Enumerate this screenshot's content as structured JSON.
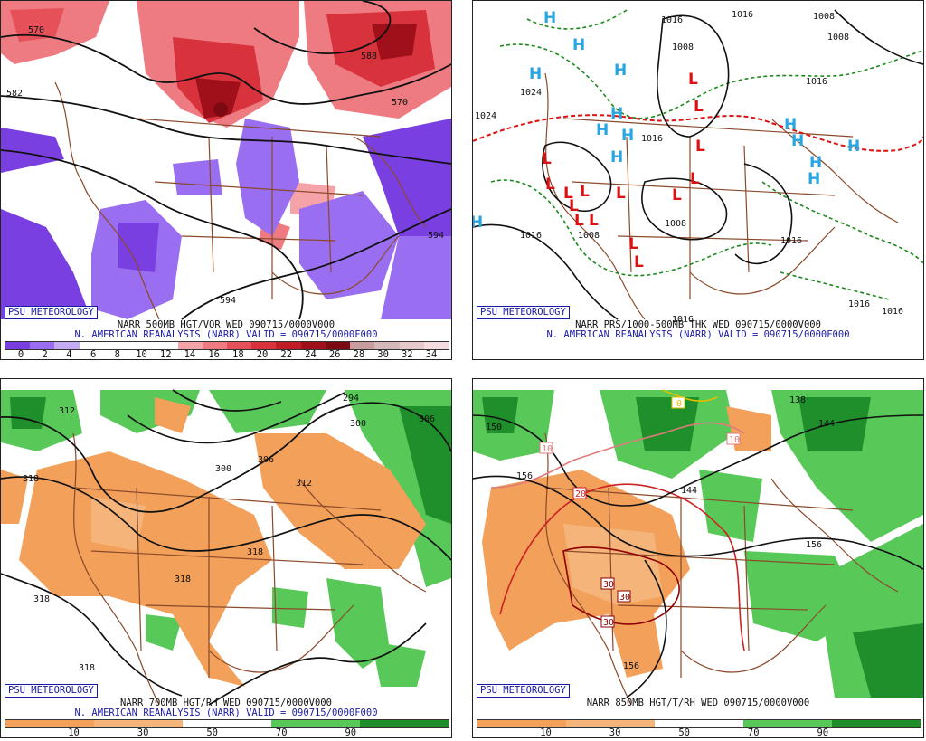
{
  "branding": {
    "psu_label": "PSU METEOROLOGY"
  },
  "panels": {
    "tl": {
      "title": "NARR 500MB HGT/VOR WED 090715/0000V000",
      "subtitle": "N. AMERICAN REANALYSIS (NARR) VALID = 090715/0000F000",
      "contour_labels": [
        "570",
        "582",
        "588",
        "570",
        "594",
        "594"
      ],
      "colorbar_ticks": [
        "0",
        "2",
        "4",
        "6",
        "8",
        "10",
        "12",
        "14",
        "16",
        "18",
        "20",
        "22",
        "24",
        "26",
        "28",
        "30",
        "32",
        "34"
      ]
    },
    "tr": {
      "title": "NARR PRS/1000-500MB THK WED 090715/0000V000",
      "subtitle": "N. AMERICAN REANALYSIS (NARR) VALID = 090715/0000F000",
      "contour_labels": [
        "1024",
        "1024",
        "1016",
        "1008",
        "1016",
        "1008",
        "1016",
        "1008",
        "1016",
        "1016",
        "1008",
        "1016",
        "1016",
        "1016",
        "1008",
        "1016"
      ],
      "high_label": "H",
      "low_label": "L"
    },
    "bl": {
      "title": "NARR 700MB HGT/RH WED 090715/0000V000",
      "subtitle": "N. AMERICAN REANALYSIS (NARR) VALID = 090715/0000F000",
      "contour_labels": [
        "312",
        "318",
        "300",
        "306",
        "312",
        "294",
        "306",
        "300",
        "318",
        "318",
        "318",
        "318"
      ],
      "colorbar_ticks": [
        "10",
        "30",
        "50",
        "70",
        "90"
      ]
    },
    "br": {
      "title": "NARR 850MB HGT/T/RH WED 090715/0000V000",
      "contour_labels": [
        "150",
        "156",
        "144",
        "138",
        "144",
        "156",
        "156"
      ],
      "temp_labels": [
        "10",
        "10",
        "20",
        "30",
        "30",
        "30",
        "0"
      ],
      "colorbar_ticks": [
        "10",
        "30",
        "50",
        "70",
        "90"
      ]
    }
  },
  "colors": {
    "vort_scale": [
      "#7a3fe0",
      "#9a6ef0",
      "#c4acf5",
      "#ffffff",
      "#ffffff",
      "#ffffff",
      "#ffffff",
      "#f5a3a8",
      "#ee7b82",
      "#e65058",
      "#d8323c",
      "#c01c26",
      "#a0101a",
      "#7d0a12",
      "#c99ca0",
      "#d7b8ba",
      "#e7c8cc",
      "#f4dce0"
    ],
    "rh_scale": [
      "#f2a05a",
      "#f4b47a",
      "#ffffff",
      "#58c858",
      "#1e8f2a"
    ],
    "state_lines": "#8b4a2b",
    "high": "#29a6e0",
    "low": "#dd1111"
  }
}
